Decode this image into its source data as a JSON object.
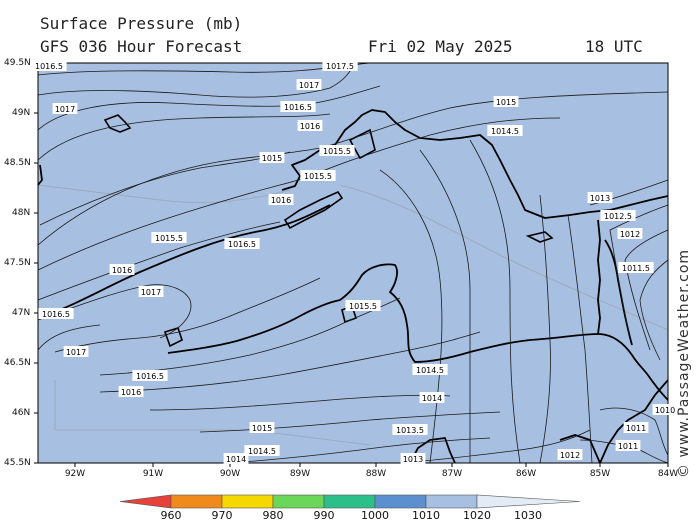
{
  "header": {
    "title": "Surface Pressure (mb)",
    "subtitle": "GFS 036 Hour Forecast",
    "date": "Fri 02 May 2025",
    "time": "18 UTC"
  },
  "credit": "© www.PassageWeather.com",
  "lat_labels": [
    "49.5N",
    "49N",
    "48.5N",
    "48N",
    "47.5N",
    "47N",
    "46.5N",
    "46N",
    "45.5N"
  ],
  "lon_labels": [
    "92W",
    "91W",
    "90W",
    "89W",
    "88W",
    "87W",
    "86W",
    "85W",
    "84W"
  ],
  "contour_labels": [
    {
      "text": "1016.5"
    },
    {
      "text": "1017"
    },
    {
      "text": "1017.5"
    },
    {
      "text": "1017"
    },
    {
      "text": "1016.5"
    },
    {
      "text": "1016"
    },
    {
      "text": "1015"
    },
    {
      "text": "1015.5"
    },
    {
      "text": "1015"
    },
    {
      "text": "1015.5"
    },
    {
      "text": "1014.5"
    },
    {
      "text": "1016"
    },
    {
      "text": "1015.5"
    },
    {
      "text": "1016.5"
    },
    {
      "text": "1016"
    },
    {
      "text": "1017"
    },
    {
      "text": "1016.5"
    },
    {
      "text": "1017"
    },
    {
      "text": "1015.5"
    },
    {
      "text": "1016.5"
    },
    {
      "text": "1016"
    },
    {
      "text": "1015"
    },
    {
      "text": "1014.5"
    },
    {
      "text": "1014.5"
    },
    {
      "text": "1014"
    },
    {
      "text": "1013.5"
    },
    {
      "text": "1014"
    },
    {
      "text": "1013"
    },
    {
      "text": "1013"
    },
    {
      "text": "1012.5"
    },
    {
      "text": "1012"
    },
    {
      "text": "1011.5"
    },
    {
      "text": "1011"
    },
    {
      "text": "1011"
    },
    {
      "text": "1010"
    },
    {
      "text": "1012"
    }
  ],
  "colorbar": {
    "colors": [
      "#e8403a",
      "#f08a1c",
      "#f5d800",
      "#6ad65a",
      "#2cbf8a",
      "#5b8fcf",
      "#a7bfe0",
      "#e3ebf7"
    ],
    "labels": [
      "960",
      "970",
      "980",
      "990",
      "1000",
      "1010",
      "1020",
      "1030"
    ]
  },
  "map_fill": "#a7bfe0"
}
